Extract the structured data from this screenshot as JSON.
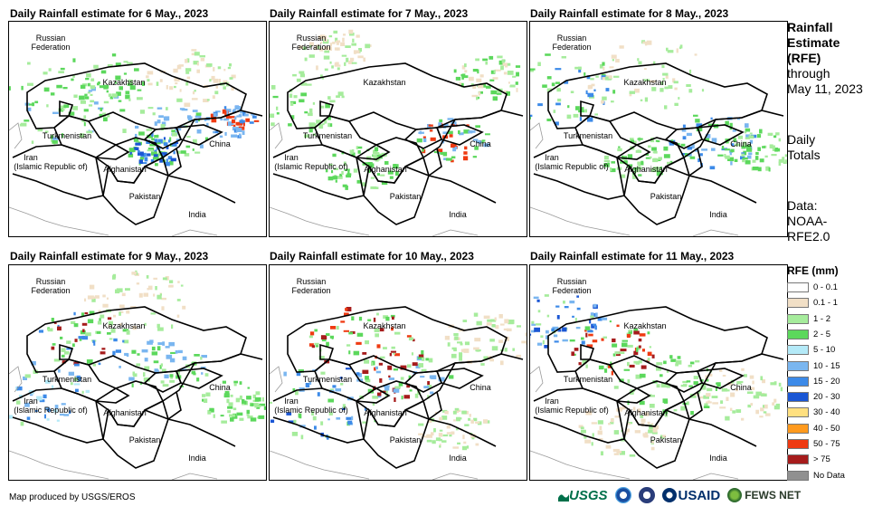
{
  "panels": [
    {
      "title": "Daily Rainfall estimate for 6 May., 2023"
    },
    {
      "title": "Daily Rainfall estimate for 7 May., 2023"
    },
    {
      "title": "Daily Rainfall estimate for 8 May., 2023"
    },
    {
      "title": "Daily Rainfall estimate for 9 May., 2023"
    },
    {
      "title": "Daily Rainfall estimate for 10 May., 2023"
    },
    {
      "title": "Daily Rainfall estimate for 11 May., 2023"
    }
  ],
  "map_labels": {
    "russia_1": "Russian",
    "russia_2": "Federation",
    "kazakhstan": "Kazakhstan",
    "turkmenistan": "Turkmenistan",
    "iran_1": "Iran",
    "iran_2": "(Islamic Republic of)",
    "afghanistan": "Afghanistan",
    "pakistan": "Pakistan",
    "china": "China",
    "india": "India"
  },
  "side": {
    "line1": "Rainfall",
    "line2": "Estimate",
    "line3": "(RFE)",
    "line4": "through",
    "line5": "May 11, 2023",
    "line6": "Daily",
    "line7": "Totals",
    "line8": "Data:",
    "line9": "NOAA-",
    "line10": "RFE2.0"
  },
  "legend": {
    "title": "RFE (mm)",
    "items": [
      {
        "label": "0 - 0.1",
        "color": "#ffffff"
      },
      {
        "label": "0.1 - 1",
        "color": "#f1dfc6"
      },
      {
        "label": "1 - 2",
        "color": "#a6ec9c"
      },
      {
        "label": "2 - 5",
        "color": "#5cd85c"
      },
      {
        "label": "5 - 10",
        "color": "#b4eaf8"
      },
      {
        "label": "10 - 15",
        "color": "#7ab6f0"
      },
      {
        "label": "15 - 20",
        "color": "#3c8ae8"
      },
      {
        "label": "20 - 30",
        "color": "#1a56d4"
      },
      {
        "label": "30 - 40",
        "color": "#ffe080"
      },
      {
        "label": "40 - 50",
        "color": "#ff9a1e"
      },
      {
        "label": "50 - 75",
        "color": "#ef3a12"
      },
      {
        "label": "> 75",
        "color": "#a61c1c"
      },
      {
        "label": "No Data",
        "color": "#909090"
      }
    ]
  },
  "credit": "Map produced by USGS/EROS",
  "logos": {
    "usgs": "USGS",
    "usaid": "USAID",
    "fewsnet": "FEWS NET"
  }
}
